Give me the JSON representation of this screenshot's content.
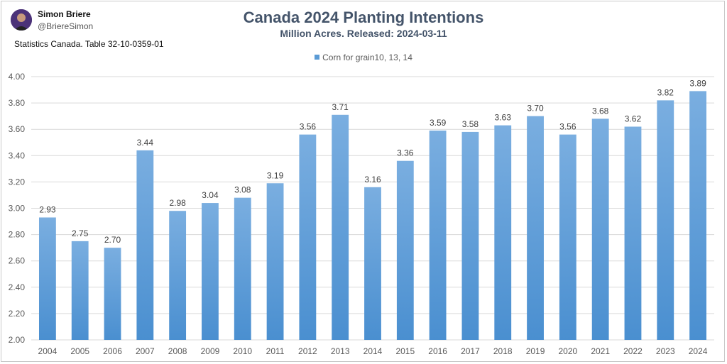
{
  "author": {
    "name": "Simon Briere",
    "handle": "@BriereSimon"
  },
  "source_note": "Statistics Canada. Table 32-10-0359-01",
  "colors": {
    "bar": "#5b9bd5",
    "title": "#44546a",
    "grid": "#d9d9d9"
  },
  "chart_data": {
    "type": "bar",
    "title": "Canada 2024 Planting Intentions",
    "subtitle": "Million Acres. Released: 2024-03-11",
    "categories": [
      "2004",
      "2005",
      "2006",
      "2007",
      "2008",
      "2009",
      "2010",
      "2011",
      "2012",
      "2013",
      "2014",
      "2015",
      "2016",
      "2017",
      "2018",
      "2019",
      "2020",
      "2021",
      "2022",
      "2023",
      "2024"
    ],
    "series": [
      {
        "name": "Corn for grain10, 13, 14",
        "values": [
          2.93,
          2.75,
          2.7,
          3.44,
          2.98,
          3.04,
          3.08,
          3.19,
          3.56,
          3.71,
          3.16,
          3.36,
          3.59,
          3.58,
          3.63,
          3.7,
          3.56,
          3.68,
          3.62,
          3.82,
          3.89
        ]
      }
    ],
    "ylim": [
      2.0,
      4.0
    ],
    "yticks": [
      "2.00",
      "2.20",
      "2.40",
      "2.60",
      "2.80",
      "3.00",
      "3.20",
      "3.40",
      "3.60",
      "3.80",
      "4.00"
    ],
    "data_labels": [
      "2.93",
      "2.75",
      "2.70",
      "3.44",
      "2.98",
      "3.04",
      "3.08",
      "3.19",
      "3.56",
      "3.71",
      "3.16",
      "3.36",
      "3.59",
      "3.58",
      "3.63",
      "3.70",
      "3.56",
      "3.68",
      "3.62",
      "3.82",
      "3.89"
    ],
    "legend_position": "top",
    "grid": true,
    "xlabel": "",
    "ylabel": ""
  }
}
